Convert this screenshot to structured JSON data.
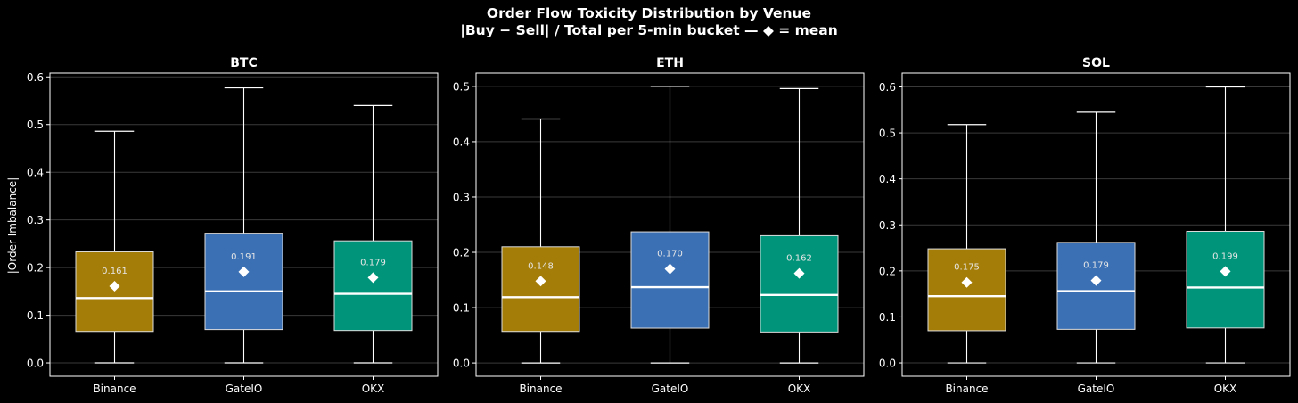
{
  "title": {
    "line1": "Order Flow Toxicity Distribution by Venue",
    "line2": "|Buy − Sell| / Total per 5-min bucket — ◆ = mean"
  },
  "ylabel": "|Order Imbalance|",
  "colors": {
    "background": "#000000",
    "axes": "#ffffff",
    "grid": "#3a3a3a",
    "Binance": "#a47d08",
    "GateIO": "#3b70b4",
    "OKX": "#00957a"
  },
  "chart_data": [
    {
      "type": "box",
      "title": "BTC",
      "categories": [
        "Binance",
        "GateIO",
        "OKX"
      ],
      "ylim": [
        -0.028,
        0.608
      ],
      "yticks": [
        "0.0",
        "0.1",
        "0.2",
        "0.3",
        "0.4",
        "0.5",
        "0.6"
      ],
      "grid": true,
      "boxes": [
        {
          "name": "Binance",
          "whisker_low": 0.0,
          "q1": 0.066,
          "median": 0.136,
          "q3": 0.233,
          "whisker_high": 0.486,
          "mean": 0.161,
          "mean_label": "0.161"
        },
        {
          "name": "GateIO",
          "whisker_low": 0.0,
          "q1": 0.07,
          "median": 0.15,
          "q3": 0.272,
          "whisker_high": 0.577,
          "mean": 0.191,
          "mean_label": "0.191"
        },
        {
          "name": "OKX",
          "whisker_low": 0.0,
          "q1": 0.068,
          "median": 0.145,
          "q3": 0.256,
          "whisker_high": 0.54,
          "mean": 0.179,
          "mean_label": "0.179"
        }
      ]
    },
    {
      "type": "box",
      "title": "ETH",
      "categories": [
        "Binance",
        "GateIO",
        "OKX"
      ],
      "ylim": [
        -0.024,
        0.524
      ],
      "yticks": [
        "0.0",
        "0.1",
        "0.2",
        "0.3",
        "0.4",
        "0.5"
      ],
      "grid": true,
      "boxes": [
        {
          "name": "Binance",
          "whisker_low": 0.0,
          "q1": 0.057,
          "median": 0.119,
          "q3": 0.21,
          "whisker_high": 0.441,
          "mean": 0.148,
          "mean_label": "0.148"
        },
        {
          "name": "GateIO",
          "whisker_low": 0.0,
          "q1": 0.063,
          "median": 0.137,
          "q3": 0.237,
          "whisker_high": 0.5,
          "mean": 0.17,
          "mean_label": "0.170"
        },
        {
          "name": "OKX",
          "whisker_low": 0.0,
          "q1": 0.056,
          "median": 0.123,
          "q3": 0.23,
          "whisker_high": 0.496,
          "mean": 0.162,
          "mean_label": "0.162"
        }
      ]
    },
    {
      "type": "box",
      "title": "SOL",
      "categories": [
        "Binance",
        "GateIO",
        "OKX"
      ],
      "ylim": [
        -0.029,
        0.63
      ],
      "yticks": [
        "0.0",
        "0.1",
        "0.2",
        "0.3",
        "0.4",
        "0.5",
        "0.6"
      ],
      "grid": true,
      "boxes": [
        {
          "name": "Binance",
          "whisker_low": 0.0,
          "q1": 0.07,
          "median": 0.145,
          "q3": 0.248,
          "whisker_high": 0.518,
          "mean": 0.175,
          "mean_label": "0.175"
        },
        {
          "name": "GateIO",
          "whisker_low": 0.0,
          "q1": 0.073,
          "median": 0.156,
          "q3": 0.262,
          "whisker_high": 0.545,
          "mean": 0.179,
          "mean_label": "0.179"
        },
        {
          "name": "OKX",
          "whisker_low": 0.0,
          "q1": 0.076,
          "median": 0.164,
          "q3": 0.286,
          "whisker_high": 0.6,
          "mean": 0.199,
          "mean_label": "0.199"
        }
      ]
    }
  ]
}
